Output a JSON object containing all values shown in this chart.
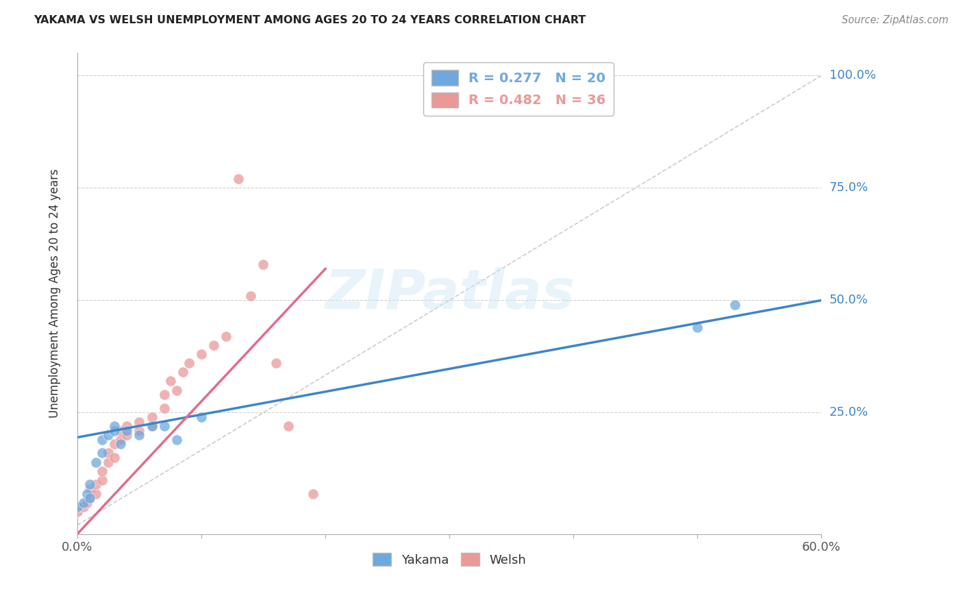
{
  "title": "YAKAMA VS WELSH UNEMPLOYMENT AMONG AGES 20 TO 24 YEARS CORRELATION CHART",
  "source": "Source: ZipAtlas.com",
  "ylabel": "Unemployment Among Ages 20 to 24 years",
  "ytick_values": [
    0,
    0.25,
    0.5,
    0.75,
    1.0
  ],
  "xlim": [
    0.0,
    0.6
  ],
  "ylim": [
    -0.02,
    1.05
  ],
  "yakama_color": "#6fa8dc",
  "welsh_color": "#ea9999",
  "yakama_label": "Yakama",
  "welsh_label": "Welsh",
  "yakama_R": 0.277,
  "yakama_N": 20,
  "welsh_R": 0.482,
  "welsh_N": 36,
  "watermark": "ZIPatlas",
  "background_color": "#ffffff",
  "grid_color": "#d0d0d0",
  "yakama_scatter_x": [
    0.0,
    0.005,
    0.008,
    0.01,
    0.01,
    0.015,
    0.02,
    0.02,
    0.025,
    0.03,
    0.03,
    0.035,
    0.04,
    0.05,
    0.06,
    0.07,
    0.08,
    0.1,
    0.5,
    0.53
  ],
  "yakama_scatter_y": [
    0.04,
    0.05,
    0.07,
    0.06,
    0.09,
    0.14,
    0.16,
    0.19,
    0.2,
    0.21,
    0.22,
    0.18,
    0.21,
    0.2,
    0.22,
    0.22,
    0.19,
    0.24,
    0.44,
    0.49
  ],
  "welsh_scatter_x": [
    0.0,
    0.005,
    0.008,
    0.01,
    0.01,
    0.015,
    0.015,
    0.02,
    0.02,
    0.025,
    0.025,
    0.03,
    0.03,
    0.035,
    0.035,
    0.04,
    0.04,
    0.05,
    0.05,
    0.06,
    0.06,
    0.07,
    0.07,
    0.075,
    0.08,
    0.085,
    0.09,
    0.1,
    0.11,
    0.12,
    0.13,
    0.14,
    0.15,
    0.16,
    0.17,
    0.19
  ],
  "welsh_scatter_y": [
    0.03,
    0.04,
    0.05,
    0.06,
    0.08,
    0.07,
    0.09,
    0.1,
    0.12,
    0.14,
    0.16,
    0.15,
    0.18,
    0.19,
    0.21,
    0.2,
    0.22,
    0.21,
    0.23,
    0.22,
    0.24,
    0.26,
    0.29,
    0.32,
    0.3,
    0.34,
    0.36,
    0.38,
    0.4,
    0.42,
    0.77,
    0.51,
    0.58,
    0.36,
    0.22,
    0.07
  ],
  "yakama_line_x": [
    0.0,
    0.6
  ],
  "yakama_line_y": [
    0.195,
    0.5
  ],
  "welsh_line_x": [
    0.0,
    0.2
  ],
  "welsh_line_y": [
    -0.02,
    0.57
  ],
  "diag_line_x": [
    0.0,
    0.6
  ],
  "diag_line_y": [
    0.0,
    1.0
  ]
}
